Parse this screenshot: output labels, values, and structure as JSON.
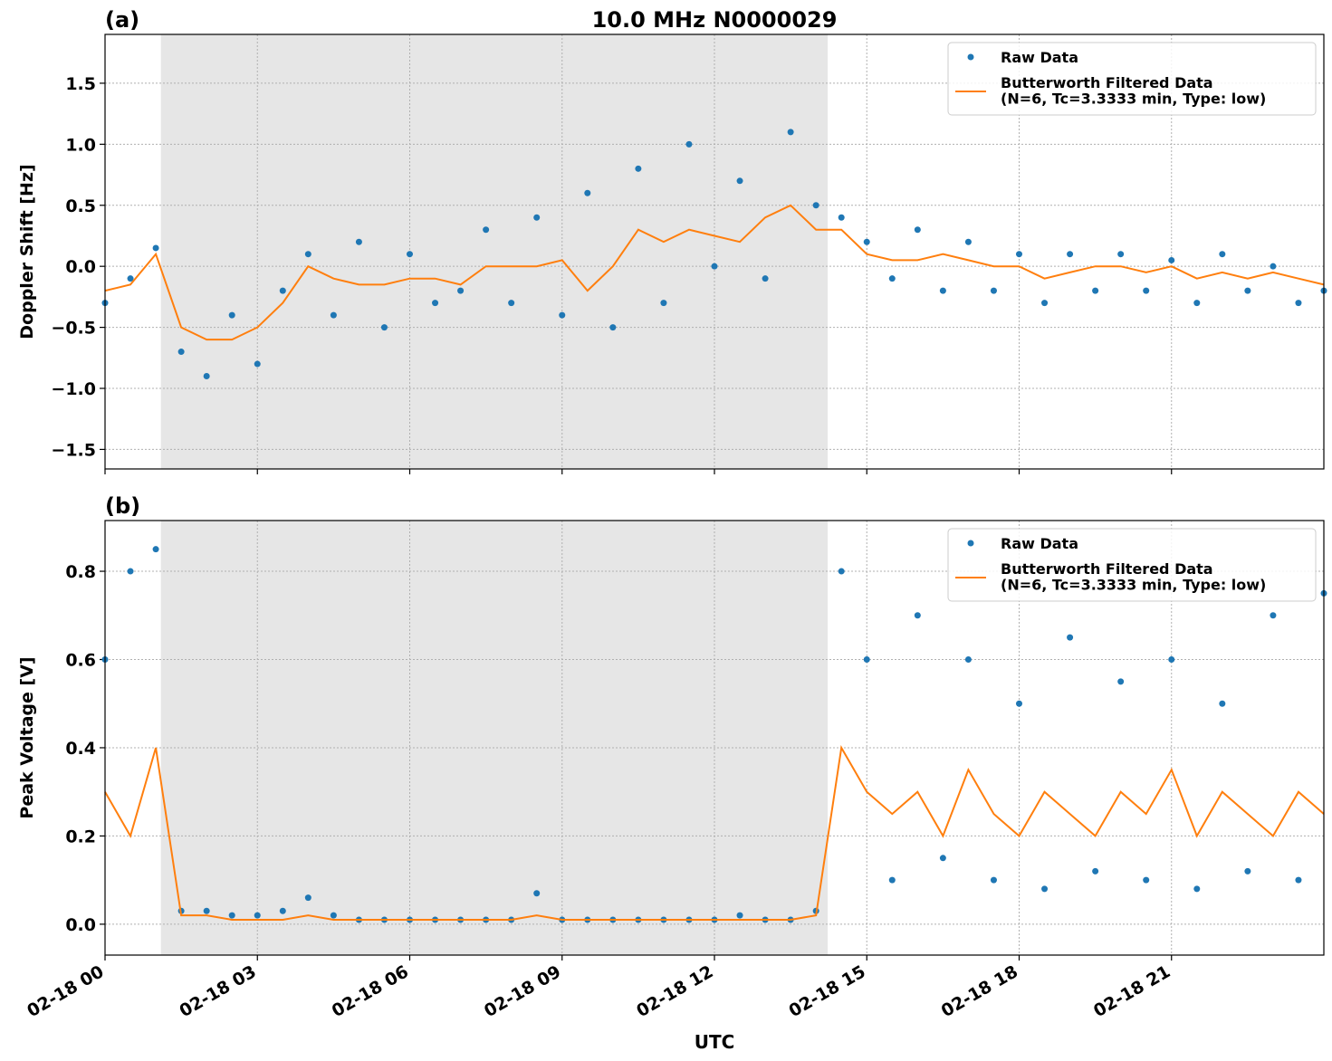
{
  "chart_data": [
    {
      "type": "line",
      "title": "10.0 MHz N0000029",
      "panel_label": "(a)",
      "ylabel": "Doppler Shift [Hz]",
      "x": [
        0,
        0.5,
        1,
        1.5,
        2,
        2.5,
        3,
        3.5,
        4,
        4.5,
        5,
        5.5,
        6,
        6.5,
        7,
        7.5,
        8,
        8.5,
        9,
        9.5,
        10,
        10.5,
        11,
        11.5,
        12,
        12.5,
        13,
        13.5,
        14,
        14.5,
        15,
        15.5,
        16,
        16.5,
        17,
        17.5,
        18,
        18.5,
        19,
        19.5,
        20,
        20.5,
        21,
        21.5,
        22,
        22.5,
        23,
        23.5,
        24
      ],
      "series": [
        {
          "name": "Raw Data",
          "color": "#1f77b4",
          "style": "points",
          "values": [
            -0.3,
            -0.1,
            0.15,
            -0.7,
            -0.9,
            -0.4,
            -0.8,
            -0.2,
            0.1,
            -0.4,
            0.2,
            -0.5,
            0.1,
            -0.3,
            -0.2,
            0.3,
            -0.3,
            0.4,
            -0.4,
            0.6,
            -0.5,
            0.8,
            -0.3,
            1.0,
            0.0,
            0.7,
            -0.1,
            1.1,
            0.5,
            0.4,
            0.2,
            -0.1,
            0.3,
            -0.2,
            0.2,
            -0.2,
            0.1,
            -0.3,
            0.1,
            -0.2,
            0.1,
            -0.2,
            0.05,
            -0.3,
            0.1,
            -0.2,
            0.0,
            -0.3,
            -0.2
          ]
        },
        {
          "name": "Butterworth Filtered Data\n(N=6, Tc=3.3333 min, Type: low)",
          "color": "#ff7f0e",
          "style": "line",
          "values": [
            -0.2,
            -0.15,
            0.1,
            -0.5,
            -0.6,
            -0.6,
            -0.5,
            -0.3,
            0.0,
            -0.1,
            -0.15,
            -0.15,
            -0.1,
            -0.1,
            -0.15,
            0.0,
            0.0,
            0.0,
            0.05,
            -0.2,
            0.0,
            0.3,
            0.2,
            0.3,
            0.25,
            0.2,
            0.4,
            0.5,
            0.3,
            0.3,
            0.1,
            0.05,
            0.05,
            0.1,
            0.05,
            0.0,
            0.0,
            -0.1,
            -0.05,
            0.0,
            0.0,
            -0.05,
            0.0,
            -0.1,
            -0.05,
            -0.1,
            -0.05,
            -0.1,
            -0.15
          ]
        }
      ],
      "xlim": [
        0,
        24
      ],
      "ylim": [
        -1.66,
        1.9
      ],
      "yticks": [
        {
          "value": -1.5,
          "label": "−1.5"
        },
        {
          "value": -1.0,
          "label": "−1.0"
        },
        {
          "value": -0.5,
          "label": "−0.5"
        },
        {
          "value": 0,
          "label": "0.0"
        },
        0.5,
        {
          "value": 1.0,
          "label": "1.0"
        },
        1.5
      ],
      "shade": [
        1.1,
        14.23
      ],
      "grid": true,
      "legend": "upper right"
    },
    {
      "type": "line",
      "panel_label": "(b)",
      "ylabel": "Peak Voltage [V]",
      "xlabel": "UTC",
      "x": [
        0,
        0.5,
        1,
        1.5,
        2,
        2.5,
        3,
        3.5,
        4,
        4.5,
        5,
        5.5,
        6,
        6.5,
        7,
        7.5,
        8,
        8.5,
        9,
        9.5,
        10,
        10.5,
        11,
        11.5,
        12,
        12.5,
        13,
        13.5,
        14,
        14.5,
        15,
        15.5,
        16,
        16.5,
        17,
        17.5,
        18,
        18.5,
        19,
        19.5,
        20,
        20.5,
        21,
        21.5,
        22,
        22.5,
        23,
        23.5,
        24
      ],
      "series": [
        {
          "name": "Raw Data",
          "color": "#1f77b4",
          "style": "points",
          "values": [
            0.6,
            0.8,
            0.85,
            0.03,
            0.03,
            0.02,
            0.02,
            0.03,
            0.06,
            0.02,
            0.01,
            0.01,
            0.01,
            0.01,
            0.01,
            0.01,
            0.01,
            0.07,
            0.01,
            0.01,
            0.01,
            0.01,
            0.01,
            0.01,
            0.01,
            0.02,
            0.01,
            0.01,
            0.03,
            0.8,
            0.6,
            0.1,
            0.7,
            0.15,
            0.6,
            0.1,
            0.5,
            0.08,
            0.65,
            0.12,
            0.55,
            0.1,
            0.6,
            0.08,
            0.5,
            0.12,
            0.7,
            0.1,
            0.75
          ]
        },
        {
          "name": "Butterworth Filtered Data\n(N=6, Tc=3.3333 min, Type: low)",
          "color": "#ff7f0e",
          "style": "line",
          "values": [
            0.3,
            0.2,
            0.4,
            0.02,
            0.02,
            0.01,
            0.01,
            0.01,
            0.02,
            0.01,
            0.01,
            0.01,
            0.01,
            0.01,
            0.01,
            0.01,
            0.01,
            0.02,
            0.01,
            0.01,
            0.01,
            0.01,
            0.01,
            0.01,
            0.01,
            0.01,
            0.01,
            0.01,
            0.02,
            0.4,
            0.3,
            0.25,
            0.3,
            0.2,
            0.35,
            0.25,
            0.2,
            0.3,
            0.25,
            0.2,
            0.3,
            0.25,
            0.35,
            0.2,
            0.3,
            0.25,
            0.2,
            0.3,
            0.25
          ]
        }
      ],
      "xlim": [
        0,
        24
      ],
      "ylim": [
        -0.07,
        0.915
      ],
      "xticks": [
        {
          "value": 0,
          "label": "02-18 00"
        },
        {
          "value": 3,
          "label": "02-18 03"
        },
        {
          "value": 6,
          "label": "02-18 06"
        },
        {
          "value": 9,
          "label": "02-18 09"
        },
        {
          "value": 12,
          "label": "02-18 12"
        },
        {
          "value": 15,
          "label": "02-18 15"
        },
        {
          "value": 18,
          "label": "02-18 18"
        },
        {
          "value": 21,
          "label": "02-18 21"
        }
      ],
      "yticks": [
        {
          "value": 0,
          "label": "0.0"
        },
        0.2,
        0.4,
        0.6,
        0.8
      ],
      "shade": [
        1.1,
        14.23
      ],
      "grid": true,
      "legend": "upper right"
    }
  ]
}
